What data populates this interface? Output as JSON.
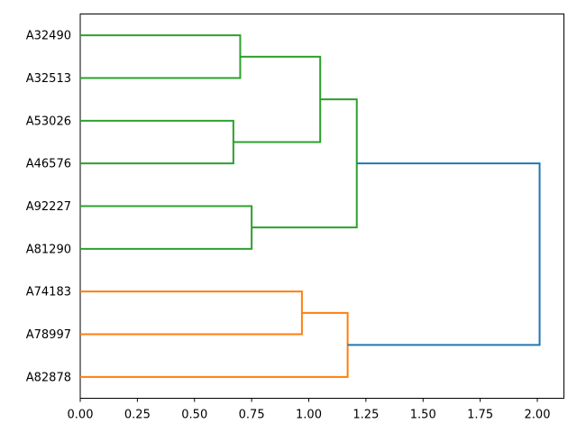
{
  "figure": {
    "title": "",
    "xlabel": "",
    "ylabel": ""
  },
  "chart_data": {
    "type": "dendrogram",
    "orientation": "right",
    "title": "",
    "xlabel": "",
    "ylabel": "",
    "grid": false,
    "xlim": [
      0,
      2.12
    ],
    "x_ticks": [
      "0.00",
      "0.25",
      "0.50",
      "0.75",
      "1.00",
      "1.25",
      "1.50",
      "1.75",
      "2.00"
    ],
    "leaves": [
      "A32490",
      "A32513",
      "A53026",
      "A46576",
      "A92227",
      "A81290",
      "A74183",
      "A78997",
      "A82878"
    ],
    "links": [
      {
        "id": "L0",
        "children": [
          "A32490",
          "A32513"
        ],
        "distance": 0.7,
        "color": "green"
      },
      {
        "id": "L1",
        "children": [
          "A53026",
          "A46576"
        ],
        "distance": 0.67,
        "color": "green"
      },
      {
        "id": "L2",
        "children": [
          "A92227",
          "A81290"
        ],
        "distance": 0.75,
        "color": "green"
      },
      {
        "id": "L3",
        "children": [
          "A74183",
          "A78997"
        ],
        "distance": 0.97,
        "color": "orange"
      },
      {
        "id": "L4",
        "children": [
          "L0",
          "L1"
        ],
        "distance": 1.05,
        "color": "green"
      },
      {
        "id": "L5",
        "children": [
          "L4",
          "L2"
        ],
        "distance": 1.21,
        "color": "green"
      },
      {
        "id": "L6",
        "children": [
          "L3",
          "A82878"
        ],
        "distance": 1.17,
        "color": "orange"
      },
      {
        "id": "L7",
        "children": [
          "L5",
          "L6"
        ],
        "distance": 2.01,
        "color": "blue"
      }
    ],
    "colors": {
      "green": "#2ca02c",
      "orange": "#ff7f0e",
      "blue": "#1f77b4",
      "axis": "#000000",
      "background": "#ffffff"
    }
  }
}
